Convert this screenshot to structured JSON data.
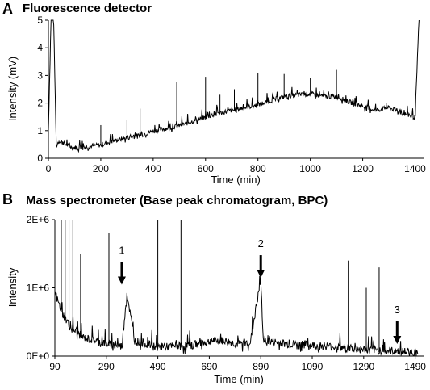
{
  "panels": [
    {
      "letter": "A",
      "title": "Fluorescence detector"
    },
    {
      "letter": "B",
      "title": "Mass spectrometer (Base peak chromatogram, BPC)"
    }
  ],
  "chart_data": [
    {
      "type": "line",
      "title": "Fluorescence detector",
      "xlabel": "Time (min)",
      "ylabel": "Intensity (mV)",
      "xlim": [
        0,
        1420
      ],
      "ylim": [
        0,
        5
      ],
      "xticks": [
        "0",
        "200",
        "400",
        "600",
        "800",
        "1000",
        "1200",
        "1400"
      ],
      "yticks": [
        "0",
        "1",
        "2",
        "3",
        "4",
        "5"
      ],
      "grid": false,
      "series": [
        {
          "x": [
            0,
            10,
            20,
            30,
            40,
            60,
            80,
            100,
            150,
            200,
            250,
            300,
            350,
            400,
            450,
            500,
            550,
            600,
            650,
            700,
            750,
            800,
            850,
            900,
            950,
            1000,
            1050,
            1100,
            1150,
            1200,
            1250,
            1300,
            1350,
            1400,
            1415
          ],
          "y": [
            1.0,
            5.0,
            5.0,
            0.4,
            0.6,
            0.5,
            0.4,
            0.35,
            0.38,
            0.45,
            0.6,
            0.7,
            0.8,
            0.95,
            1.05,
            1.15,
            1.3,
            1.45,
            1.6,
            1.7,
            1.8,
            1.9,
            2.05,
            2.2,
            2.25,
            2.3,
            2.2,
            2.2,
            2.0,
            1.85,
            1.7,
            1.8,
            1.6,
            1.45,
            5.0
          ]
        }
      ],
      "spikes": [
        {
          "x": 200,
          "y": 1.2
        },
        {
          "x": 300,
          "y": 1.4
        },
        {
          "x": 350,
          "y": 1.8
        },
        {
          "x": 490,
          "y": 2.75
        },
        {
          "x": 600,
          "y": 2.95
        },
        {
          "x": 655,
          "y": 2.3
        },
        {
          "x": 710,
          "y": 2.5
        },
        {
          "x": 800,
          "y": 3.1
        },
        {
          "x": 900,
          "y": 3.05
        },
        {
          "x": 1000,
          "y": 2.9
        },
        {
          "x": 1100,
          "y": 3.2
        },
        {
          "x": 1290,
          "y": 2.0
        }
      ]
    },
    {
      "type": "line",
      "title": "Mass spectrometer (Base peak chromatogram, BPC)",
      "xlabel": "Time (min)",
      "ylabel": "Intensity",
      "xlim": [
        90,
        1510
      ],
      "ylim": [
        0,
        2000000
      ],
      "xticks": [
        "90",
        "290",
        "490",
        "690",
        "890",
        "1090",
        "1290",
        "1490"
      ],
      "yticks": [
        "0E+0",
        "1E+6",
        "2E+6"
      ],
      "grid": false,
      "series": [
        {
          "x": [
            90,
            120,
            150,
            200,
            250,
            300,
            350,
            370,
            400,
            450,
            500,
            550,
            600,
            650,
            700,
            750,
            800,
            850,
            890,
            900,
            950,
            1000,
            1050,
            1100,
            1150,
            1200,
            1250,
            1300,
            1350,
            1400,
            1450,
            1500
          ],
          "y": [
            900000,
            600000,
            400000,
            250000,
            200000,
            150000,
            120000,
            900000,
            200000,
            150000,
            100000,
            120000,
            130000,
            150000,
            200000,
            200000,
            150000,
            180000,
            1100000,
            200000,
            180000,
            150000,
            150000,
            130000,
            120000,
            100000,
            80000,
            70000,
            60000,
            50000,
            40000,
            30000
          ]
        }
      ],
      "spikes": [
        {
          "x": 115,
          "y": 2000000
        },
        {
          "x": 130,
          "y": 2000000
        },
        {
          "x": 145,
          "y": 2000000
        },
        {
          "x": 160,
          "y": 2000000
        },
        {
          "x": 190,
          "y": 1500000
        },
        {
          "x": 300,
          "y": 1800000
        },
        {
          "x": 490,
          "y": 2000000
        },
        {
          "x": 580,
          "y": 2000000
        },
        {
          "x": 1230,
          "y": 1400000
        },
        {
          "x": 1300,
          "y": 1000000
        },
        {
          "x": 1350,
          "y": 1300000
        }
      ],
      "annotations": [
        {
          "label": "1",
          "x": 350,
          "y": 1000000
        },
        {
          "label": "2",
          "x": 890,
          "y": 1100000
        },
        {
          "label": "3",
          "x": 1420,
          "y": 130000
        }
      ]
    }
  ]
}
